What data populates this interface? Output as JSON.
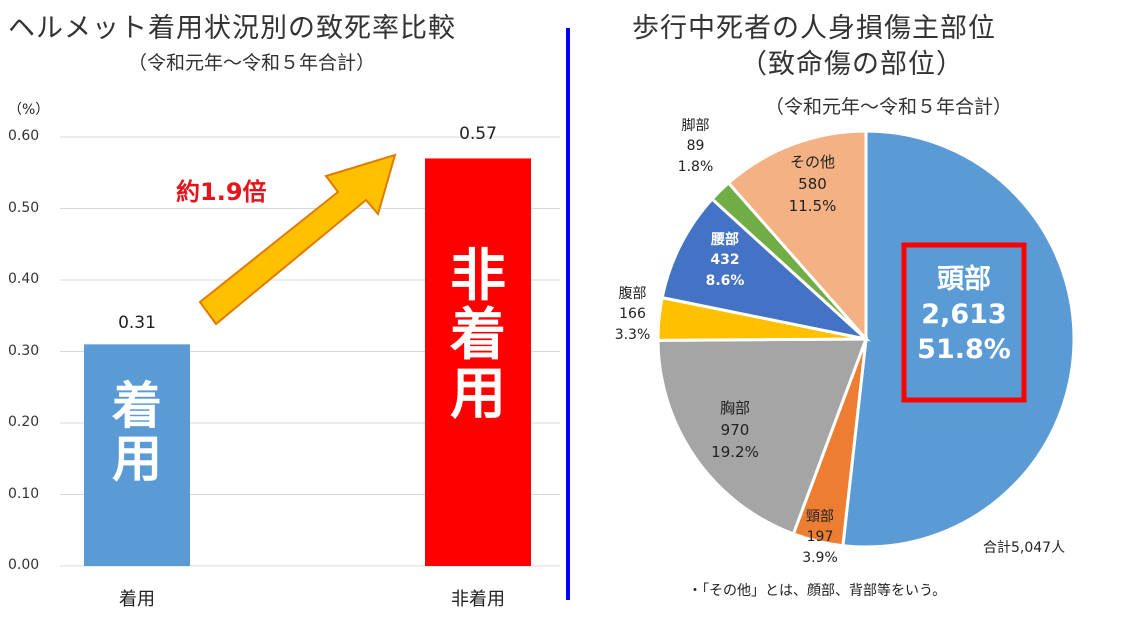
{
  "divider_color": "#0000FF",
  "chart_data": [
    {
      "type": "bar",
      "title": "ヘルメット着用状況別の致死率比較",
      "subtitle": "（令和元年～令和５年合計）",
      "ylabel": "（%）",
      "ylim": [
        0,
        0.6
      ],
      "yticks": [
        "0.00",
        "0.10",
        "0.20",
        "0.30",
        "0.40",
        "0.50",
        "0.60"
      ],
      "grid": true,
      "categories": [
        "着用",
        "非着用"
      ],
      "values": [
        0.31,
        0.57
      ],
      "value_labels": [
        "0.31",
        "0.57"
      ],
      "bar_texts": [
        "着用",
        "非着用"
      ],
      "bar_text_chars": [
        [
          "着",
          "用"
        ],
        [
          "非",
          "着",
          "用"
        ]
      ],
      "colors": [
        "#5B9BD5",
        "#FF0000"
      ],
      "annotation": "約1.9倍",
      "annotation_color": "#E8141B"
    },
    {
      "type": "pie",
      "title": "歩行中死者の人身損傷主部位",
      "title2": "（致命傷の部位）",
      "subtitle": "（令和元年～令和５年合計）",
      "total_label": "合計5,047人",
      "note": "・「その他」とは、顔部、背部等をいう。",
      "slices": [
        {
          "name": "頭部",
          "value": 2613,
          "value_label": "2,613",
          "percent": "51.8%",
          "color": "#5B9BD5"
        },
        {
          "name": "頸部",
          "value": 197,
          "value_label": "197",
          "percent": "3.9%",
          "color": "#ED7D31"
        },
        {
          "name": "胸部",
          "value": 970,
          "value_label": "970",
          "percent": "19.2%",
          "color": "#A5A5A5"
        },
        {
          "name": "腹部",
          "value": 166,
          "value_label": "166",
          "percent": "3.3%",
          "color": "#FFC000"
        },
        {
          "name": "腰部",
          "value": 432,
          "value_label": "432",
          "percent": "8.6%",
          "color": "#4472C4"
        },
        {
          "name": "脚部",
          "value": 89,
          "value_label": "89",
          "percent": "1.8%",
          "color": "#70AD47"
        },
        {
          "name": "その他",
          "value": 580,
          "value_label": "580",
          "percent": "11.5%",
          "color": "#F4B183"
        }
      ],
      "highlight_color": "#FF0000"
    }
  ]
}
